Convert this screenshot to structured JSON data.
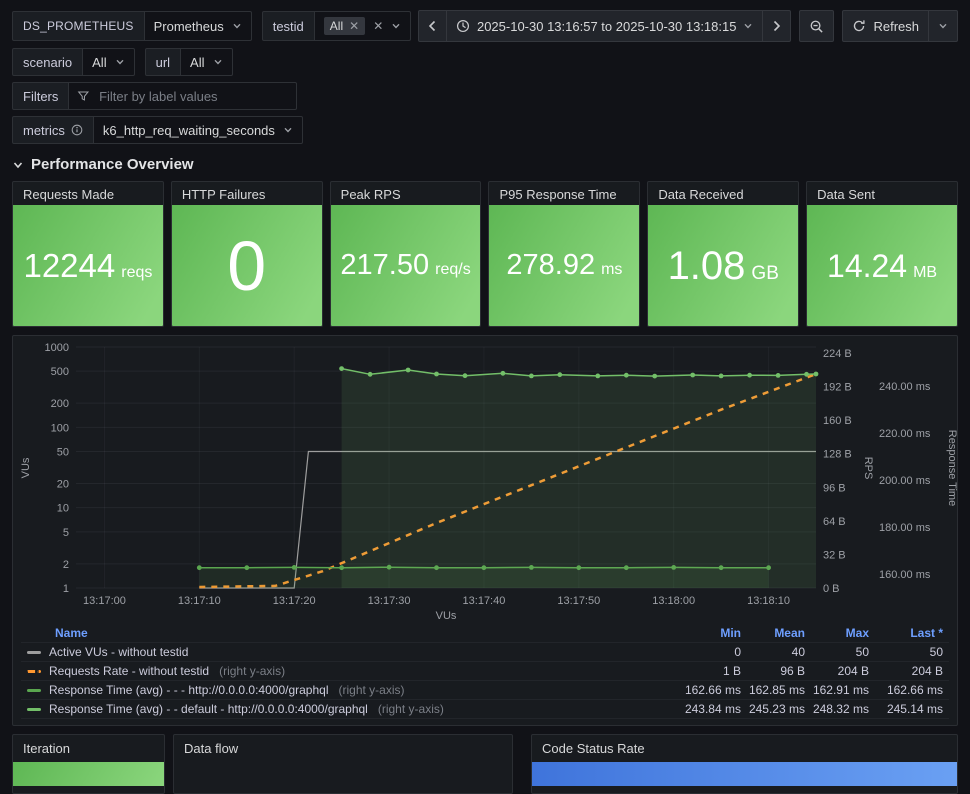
{
  "toolbar": {
    "datasource_label": "DS_PROMETHEUS",
    "datasource_value": "Prometheus",
    "testid_label": "testid",
    "testid_value": "All",
    "time_range": "2025-10-30 13:16:57 to 2025-10-30 13:18:15",
    "refresh_label": "Refresh",
    "scenario_label": "scenario",
    "scenario_value": "All",
    "url_label": "url",
    "url_value": "All",
    "filters_label": "Filters",
    "filters_placeholder": "Filter by label values",
    "metrics_label": "metrics",
    "metrics_value": "k6_http_req_waiting_seconds"
  },
  "section_title": "Performance Overview",
  "stats": [
    {
      "title": "Requests Made",
      "value": "12244",
      "unit": "reqs"
    },
    {
      "title": "HTTP Failures",
      "value": "0",
      "unit": ""
    },
    {
      "title": "Peak RPS",
      "value": "217.50",
      "unit": "req/s"
    },
    {
      "title": "P95 Response Time",
      "value": "278.92",
      "unit": "ms"
    },
    {
      "title": "Data Received",
      "value": "1.08",
      "unit": "GB"
    },
    {
      "title": "Data Sent",
      "value": "14.24",
      "unit": "MB"
    }
  ],
  "chart_data": {
    "type": "line",
    "title": "",
    "x_axis": {
      "label": "VUs",
      "ticks": [
        "13:17:00",
        "13:17:10",
        "13:17:20",
        "13:17:30",
        "13:17:40",
        "13:17:50",
        "13:18:00",
        "13:18:10"
      ],
      "tick_t": [
        10,
        20,
        30,
        40,
        50,
        60,
        70,
        80
      ],
      "range_t": [
        7,
        85
      ]
    },
    "y_axes": {
      "vus": {
        "label": "VUs",
        "scale": "log",
        "side": "left",
        "tick_values": [
          1,
          2,
          5,
          10,
          20,
          50,
          100,
          200,
          500,
          1000
        ],
        "tick_labels": [
          "1",
          "2",
          "5",
          "10",
          "20",
          "50",
          "100",
          "200",
          "500",
          "1000"
        ]
      },
      "rps": {
        "label": "RPS",
        "scale": "linear",
        "side": "right",
        "tick_values": [
          0,
          32,
          64,
          96,
          128,
          160,
          192,
          224
        ],
        "tick_labels": [
          "0 B",
          "32 B",
          "64 B",
          "96 B",
          "128 B",
          "160 B",
          "192 B",
          "224 B"
        ]
      },
      "rt": {
        "label": "Response Time",
        "scale": "linear",
        "side": "right",
        "tick_values": [
          160,
          180,
          200,
          220,
          240
        ],
        "tick_labels": [
          "160.00 ms",
          "180.00 ms",
          "200.00 ms",
          "220.00 ms",
          "240.00 ms"
        ]
      }
    },
    "series": [
      {
        "name": "Active VUs - without testid",
        "axis": "vus",
        "color": "#9e9e9e",
        "width": 1.2,
        "points": false,
        "fill": 0,
        "data": [
          [
            20,
            1
          ],
          [
            30,
            1
          ],
          [
            31.5,
            50
          ],
          [
            85,
            50
          ]
        ]
      },
      {
        "name": "Requests Rate - without testid",
        "axis": "rps",
        "color": "#ff9830",
        "width": 2.5,
        "dash": [
          6,
          6
        ],
        "points": false,
        "fill": 0,
        "data": [
          [
            20,
            1
          ],
          [
            28,
            2
          ],
          [
            33,
            16
          ],
          [
            45,
            62
          ],
          [
            55,
            98
          ],
          [
            65,
            134
          ],
          [
            75,
            170
          ],
          [
            85,
            204
          ]
        ]
      },
      {
        "name": "Response Time (avg) - - - http://0.0.0.0:4000/graphql",
        "axis": "rt",
        "color": "#5aa64f",
        "width": 1.5,
        "points": true,
        "fill": 0.12,
        "data": [
          [
            20,
            162.7
          ],
          [
            25,
            162.7
          ],
          [
            30,
            162.8
          ],
          [
            35,
            162.7
          ],
          [
            40,
            162.9
          ],
          [
            45,
            162.7
          ],
          [
            50,
            162.7
          ],
          [
            55,
            162.8
          ],
          [
            60,
            162.7
          ],
          [
            65,
            162.7
          ],
          [
            70,
            162.8
          ],
          [
            75,
            162.7
          ],
          [
            80,
            162.66
          ]
        ]
      },
      {
        "name": "Response Time (avg) - - default - http://0.0.0.0:4000/graphql",
        "axis": "rt",
        "color": "#73bf69",
        "width": 1.5,
        "points": true,
        "fill": 0.12,
        "data": [
          [
            35,
            247.4
          ],
          [
            38,
            245.0
          ],
          [
            42,
            246.8
          ],
          [
            45,
            245.1
          ],
          [
            48,
            244.4
          ],
          [
            52,
            245.4
          ],
          [
            55,
            244.3
          ],
          [
            58,
            244.8
          ],
          [
            62,
            244.3
          ],
          [
            65,
            244.6
          ],
          [
            68,
            244.2
          ],
          [
            72,
            244.7
          ],
          [
            75,
            244.3
          ],
          [
            78,
            244.6
          ],
          [
            81,
            244.5
          ],
          [
            84,
            245.0
          ],
          [
            85,
            245.1
          ]
        ]
      }
    ]
  },
  "legend": {
    "headers": [
      "Name",
      "Min",
      "Mean",
      "Max",
      "Last *"
    ],
    "rows": [
      {
        "color": "#9e9e9e",
        "dash": false,
        "name": "Active VUs - without testid",
        "suffix": "",
        "min": "0",
        "mean": "40",
        "max": "50",
        "last": "50"
      },
      {
        "color": "#ff9830",
        "dash": true,
        "name": "Requests Rate - without testid",
        "suffix": "(right y-axis)",
        "min": "1 B",
        "mean": "96 B",
        "max": "204 B",
        "last": "204 B"
      },
      {
        "color": "#5aa64f",
        "dash": false,
        "name": "Response Time (avg) - - - http://0.0.0.0:4000/graphql",
        "suffix": "(right y-axis)",
        "min": "162.66 ms",
        "mean": "162.85 ms",
        "max": "162.91 ms",
        "last": "162.66 ms"
      },
      {
        "color": "#73bf69",
        "dash": false,
        "name": "Response Time (avg) - - default - http://0.0.0.0:4000/graphql",
        "suffix": "(right y-axis)",
        "min": "243.84 ms",
        "mean": "245.23 ms",
        "max": "248.32 ms",
        "last": "245.14 ms"
      }
    ]
  },
  "bottom_panels": {
    "iteration": "Iteration",
    "data_flow": "Data flow",
    "code_status": "Code Status Rate"
  },
  "colors": {
    "green_grad_a": "#5eb754",
    "green_grad_b": "#8bd67d",
    "blue_bar_a": "#3f74db",
    "blue_bar_b": "#6aa0f3",
    "orange_series": "#ff9830",
    "green_series": "#73bf69",
    "grey_series": "#9e9e9e",
    "link_blue": "#6e9fff"
  }
}
